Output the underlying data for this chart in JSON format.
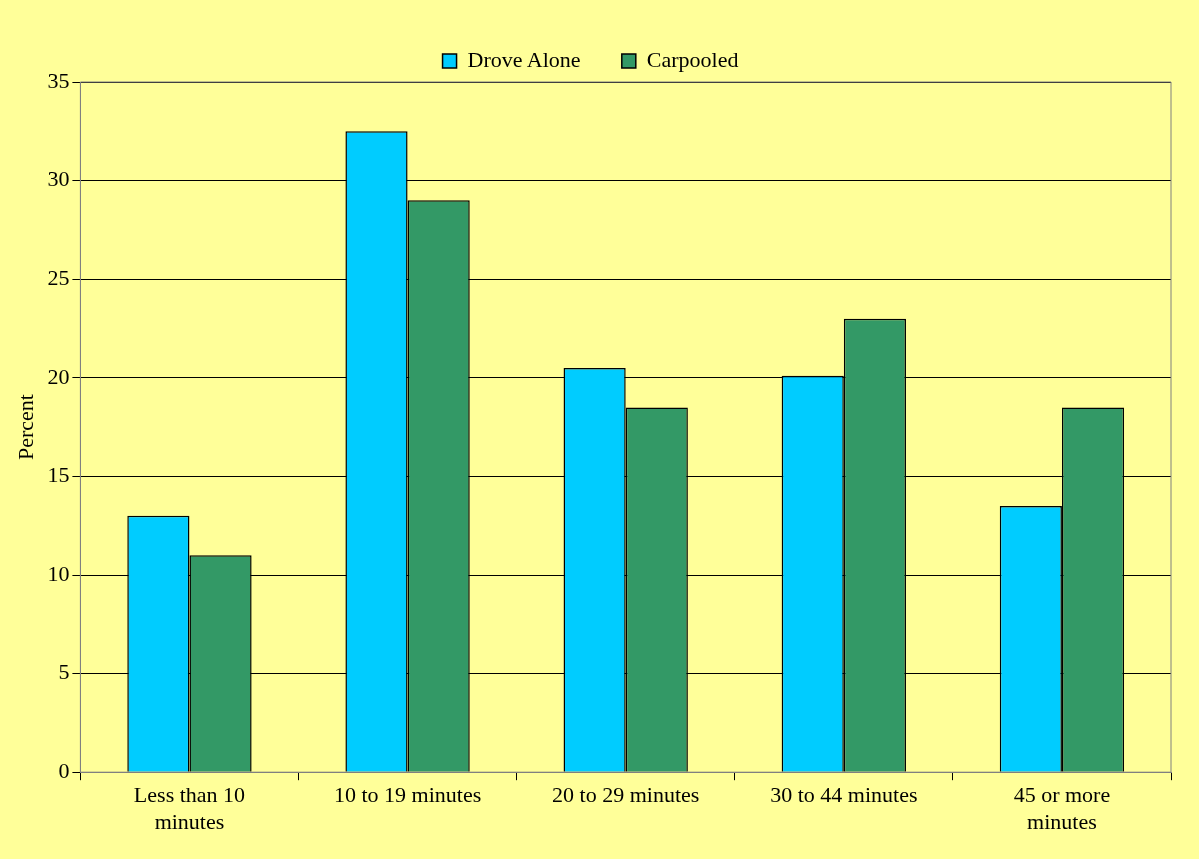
{
  "chart_data": {
    "type": "bar",
    "ylabel": "Percent",
    "categories": [
      "Less than 10 minutes",
      "10 to 19 minutes",
      "20 to 29 minutes",
      "30 to 44 minutes",
      "45 or more minutes"
    ],
    "series": [
      {
        "name": "Drove Alone",
        "color": "#00ccff",
        "values": [
          13,
          32.5,
          20.5,
          20.1,
          13.5
        ]
      },
      {
        "name": "Carpooled",
        "color": "#339966",
        "values": [
          11,
          29,
          18.5,
          23,
          18.5
        ]
      }
    ],
    "ylim": [
      0,
      35
    ],
    "yticks": [
      0,
      5,
      10,
      15,
      20,
      25,
      30,
      35
    ],
    "grid": "y",
    "legend": "top"
  }
}
